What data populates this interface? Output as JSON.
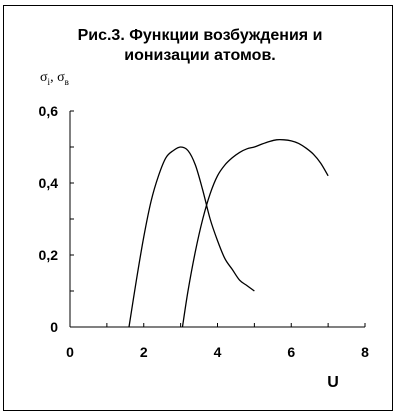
{
  "chart_data": {
    "type": "line",
    "title_line1": "Рис.3. Функции возбуждения и",
    "title_line2": "ионизации атомов.",
    "ylabel_main": "σ",
    "ylabel_sub_i": "i",
    "ylabel_sep": ", σ",
    "ylabel_sub_b": "в",
    "xlabel": "U",
    "xlim": [
      0,
      8
    ],
    "ylim": [
      0,
      0.6
    ],
    "x_ticks": [
      0,
      2,
      4,
      6,
      8
    ],
    "x_tick_labels": [
      "0",
      "2",
      "4",
      "6",
      "8"
    ],
    "y_ticks": [
      0,
      0.2,
      0.4,
      0.6
    ],
    "y_tick_labels": [
      "0",
      "0,2",
      "0,4",
      "0,6"
    ],
    "grid": false,
    "legend": "none",
    "series": [
      {
        "x": [
          1.6,
          1.8,
          2.0,
          2.2,
          2.4,
          2.6,
          2.8,
          3.0,
          3.2,
          3.4,
          3.6,
          3.8,
          4.0,
          4.2,
          4.4,
          4.6,
          4.8,
          5.0
        ],
        "y": [
          0.0,
          0.13,
          0.25,
          0.35,
          0.42,
          0.47,
          0.49,
          0.5,
          0.49,
          0.45,
          0.38,
          0.3,
          0.24,
          0.19,
          0.16,
          0.13,
          0.115,
          0.1
        ]
      },
      {
        "x": [
          3.05,
          3.2,
          3.4,
          3.6,
          3.8,
          4.0,
          4.2,
          4.4,
          4.6,
          4.8,
          5.0,
          5.2,
          5.4,
          5.6,
          5.8,
          6.0,
          6.2,
          6.4,
          6.6,
          6.8,
          7.0
        ],
        "y": [
          0.0,
          0.1,
          0.21,
          0.3,
          0.37,
          0.42,
          0.45,
          0.47,
          0.485,
          0.495,
          0.5,
          0.508,
          0.515,
          0.52,
          0.52,
          0.517,
          0.51,
          0.497,
          0.48,
          0.455,
          0.42
        ]
      }
    ]
  }
}
